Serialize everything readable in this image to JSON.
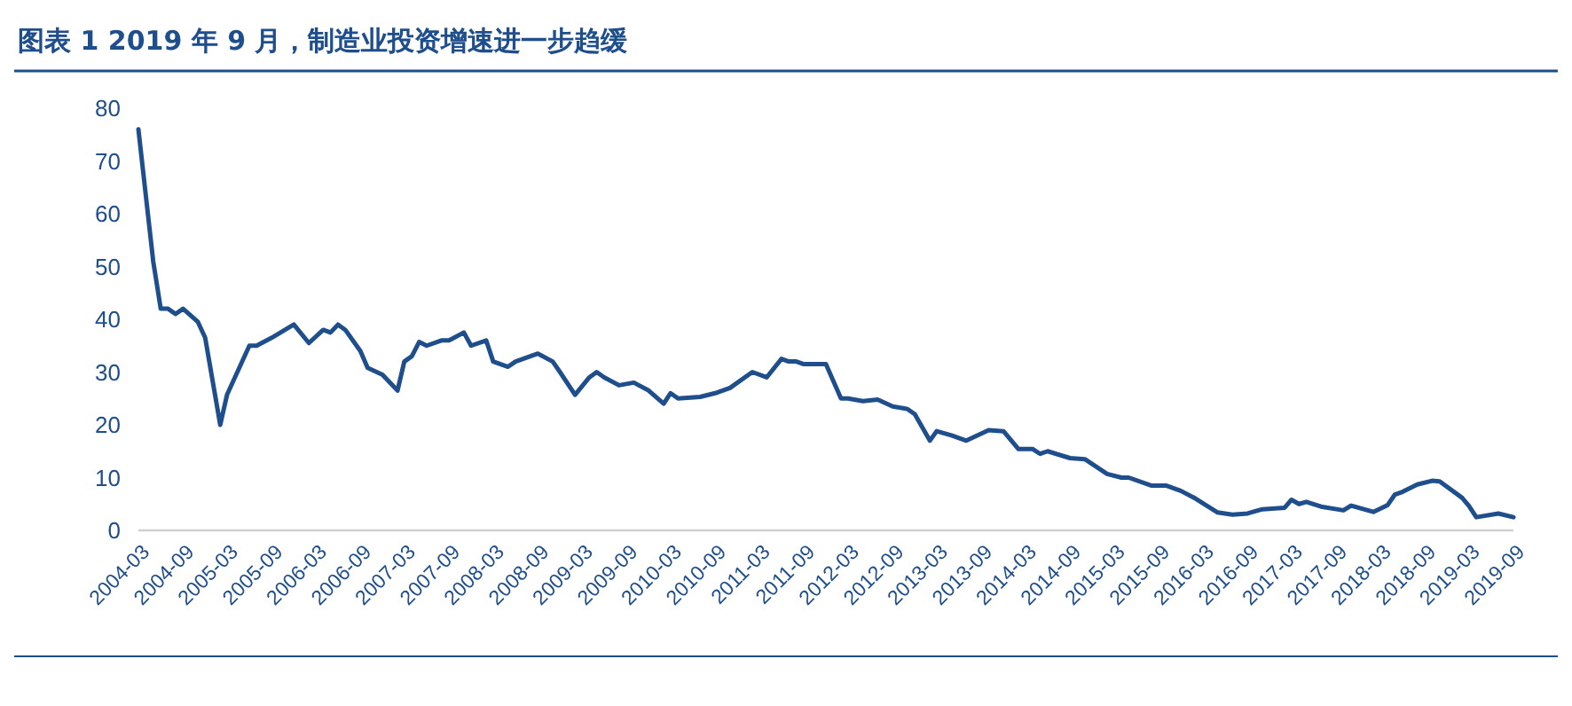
{
  "chart_data": {
    "type": "line",
    "title": "图表 1    2019 年 9 月，制造业投资增速进一步趋缓",
    "x": [
      "2004-03",
      "2004-05",
      "2004-06",
      "2004-07",
      "2004-08",
      "2004-09",
      "2004-11",
      "2004-12",
      "2005-02",
      "2005-03",
      "2005-06",
      "2005-07",
      "2005-09",
      "2005-12",
      "2006-02",
      "2006-04",
      "2006-05",
      "2006-06",
      "2006-07",
      "2006-09",
      "2006-10",
      "2006-12",
      "2007-02",
      "2007-03",
      "2007-04",
      "2007-05",
      "2007-06",
      "2007-08",
      "2007-09",
      "2007-11",
      "2007-12",
      "2008-02",
      "2008-03",
      "2008-05",
      "2008-06",
      "2008-09",
      "2008-11",
      "2008-12",
      "2009-02",
      "2009-04",
      "2009-05",
      "2009-06",
      "2009-08",
      "2009-10",
      "2009-12",
      "2010-02",
      "2010-03",
      "2010-04",
      "2010-07",
      "2010-09",
      "2010-11",
      "2011-02",
      "2011-04",
      "2011-06",
      "2011-07",
      "2011-08",
      "2011-09",
      "2011-12",
      "2012-02",
      "2012-03",
      "2012-05",
      "2012-07",
      "2012-09",
      "2012-11",
      "2012-12",
      "2013-02",
      "2013-03",
      "2013-05",
      "2013-07",
      "2013-10",
      "2013-12",
      "2014-02",
      "2014-03",
      "2014-04",
      "2014-05",
      "2014-06",
      "2014-09",
      "2014-11",
      "2015-02",
      "2015-04",
      "2015-05",
      "2015-08",
      "2015-10",
      "2015-12",
      "2016-02",
      "2016-05",
      "2016-07",
      "2016-09",
      "2016-11",
      "2017-02",
      "2017-03",
      "2017-04",
      "2017-05",
      "2017-07",
      "2017-10",
      "2017-11",
      "2018-02",
      "2018-04",
      "2018-05",
      "2018-06",
      "2018-08",
      "2018-10",
      "2018-11",
      "2019-02",
      "2019-03",
      "2019-04",
      "2019-07",
      "2019-09"
    ],
    "series": [
      {
        "color": "#1f4e8c",
        "values": [
          76,
          51,
          42,
          42,
          41,
          42,
          39.5,
          36.5,
          20,
          25.7,
          35,
          35,
          36.5,
          39,
          35.5,
          38,
          37.5,
          39,
          38,
          34,
          30.8,
          29.5,
          26.5,
          32,
          33,
          35.7,
          35,
          36,
          36,
          37.5,
          35,
          36,
          32,
          31,
          32,
          33.5,
          32,
          30,
          25.7,
          29,
          30,
          29,
          27.5,
          28,
          26.5,
          24,
          26,
          25,
          25.3,
          26,
          27,
          30,
          29,
          32.5,
          32,
          32,
          31.5,
          31.5,
          25,
          25,
          24.5,
          24.8,
          23.5,
          23,
          22,
          17,
          18.8,
          18,
          17,
          19,
          18.8,
          15.4,
          15.4,
          15.4,
          14.5,
          15,
          13.7,
          13.5,
          10.7,
          10,
          10,
          8.5,
          8.5,
          7.5,
          6,
          3.4,
          3,
          3.2,
          4,
          4.3,
          5.8,
          5,
          5.4,
          4.5,
          3.8,
          4.7,
          3.5,
          4.8,
          6.8,
          7.3,
          8.7,
          9.4,
          9.3,
          6.2,
          4.7,
          2.5,
          3.2,
          2.5
        ]
      }
    ],
    "ylim": [
      0,
      80
    ],
    "yticks": [
      0,
      10,
      20,
      30,
      40,
      50,
      60,
      70,
      80
    ],
    "xlim": [
      "2004-03",
      "2019-09"
    ],
    "xticks": [
      "2004-03",
      "2004-09",
      "2005-03",
      "2005-09",
      "2006-03",
      "2006-09",
      "2007-03",
      "2007-09",
      "2008-03",
      "2008-09",
      "2009-03",
      "2009-09",
      "2010-03",
      "2010-09",
      "2011-03",
      "2011-09",
      "2012-03",
      "2012-09",
      "2013-03",
      "2013-09",
      "2014-03",
      "2014-09",
      "2015-03",
      "2015-09",
      "2016-03",
      "2016-09",
      "2017-03",
      "2017-09",
      "2018-03",
      "2018-09",
      "2019-03",
      "2019-09"
    ],
    "grid": false,
    "marker": "none",
    "line_style": "solid"
  }
}
